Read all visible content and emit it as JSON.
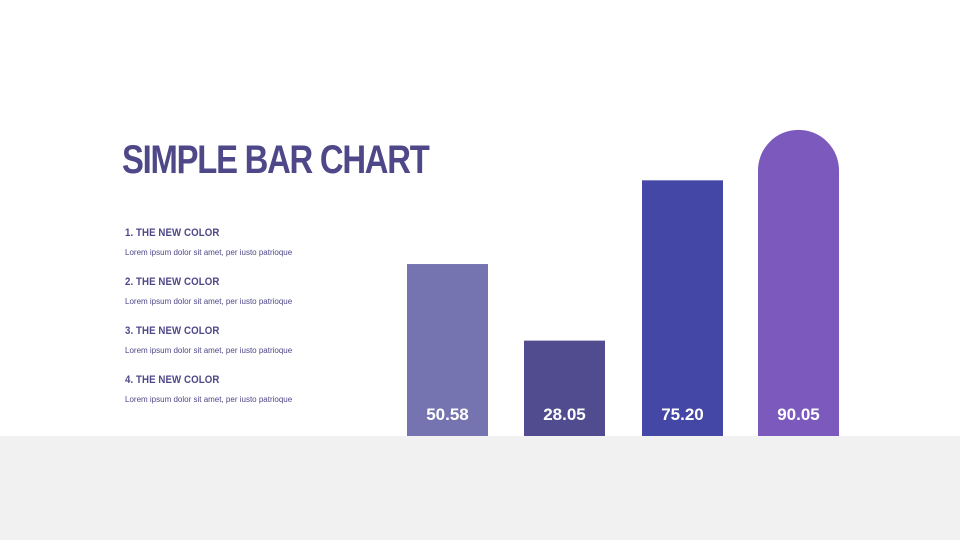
{
  "slide": {
    "title": "SIMPLE BAR CHART"
  },
  "legend": [
    {
      "heading": "1. THE NEW COLOR",
      "description": "Lorem ipsum dolor sit amet, per iusto patrioque"
    },
    {
      "heading": "2. THE NEW COLOR",
      "description": "Lorem ipsum dolor sit amet, per iusto patrioque"
    },
    {
      "heading": "3. THE NEW COLOR",
      "description": "Lorem ipsum dolor sit amet, per iusto patrioque"
    },
    {
      "heading": "4. THE NEW COLOR",
      "description": "Lorem ipsum dolor sit amet, per iusto patrioque"
    }
  ],
  "colors": {
    "title": "#4e4889",
    "text": "#4e4889",
    "floor": "#f1f1f1",
    "data_label": "#ffffff"
  },
  "chart_data": {
    "type": "bar",
    "title": "",
    "xlabel": "",
    "ylabel": "",
    "ylim": [
      0,
      100
    ],
    "grid": false,
    "legend": "none",
    "values": [
      50.58,
      28.05,
      75.2,
      90.05
    ],
    "value_labels": [
      "50.58",
      "28.05",
      "75.20",
      "90.05"
    ],
    "bar_colors": [
      "#7574b0",
      "#514c8f",
      "#4447a5",
      "#7b59bd"
    ],
    "last_bar_rounded_top": true
  }
}
